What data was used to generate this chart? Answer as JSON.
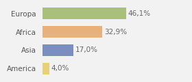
{
  "categories": [
    "Europa",
    "Africa",
    "Asia",
    "America"
  ],
  "values": [
    46.1,
    32.9,
    17.0,
    4.0
  ],
  "labels": [
    "46,1%",
    "32,9%",
    "17,0%",
    "4,0%"
  ],
  "bar_colors": [
    "#a8c07a",
    "#e8b07a",
    "#7a8fc0",
    "#e8d07a"
  ],
  "background_color": "#f2f2f2",
  "xlim": [
    0,
    80
  ],
  "bar_height": 0.62,
  "label_fontsize": 7.5,
  "category_fontsize": 7.5
}
